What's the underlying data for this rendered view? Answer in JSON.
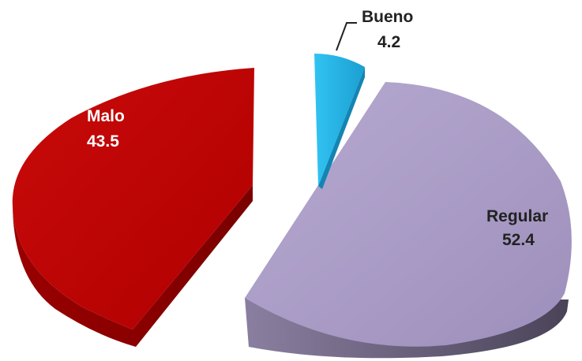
{
  "chart_data": {
    "type": "pie",
    "title": "",
    "slices": [
      {
        "label": "Bueno",
        "value": 4.2,
        "value_text": "4.2",
        "color": "#1fb3e8",
        "side_color": "#1487b0",
        "label_color": "#222222"
      },
      {
        "label": "Regular",
        "value": 52.4,
        "value_text": "52.4",
        "color": "#aa9cc6",
        "side_color": "#5e5470",
        "label_color": "#222222"
      },
      {
        "label": "Malo",
        "value": 43.5,
        "value_text": "43.5",
        "color": "#c00000",
        "side_color": "#8c0000",
        "label_color": "#ffffff"
      }
    ],
    "exploded": true,
    "three_d": true
  }
}
